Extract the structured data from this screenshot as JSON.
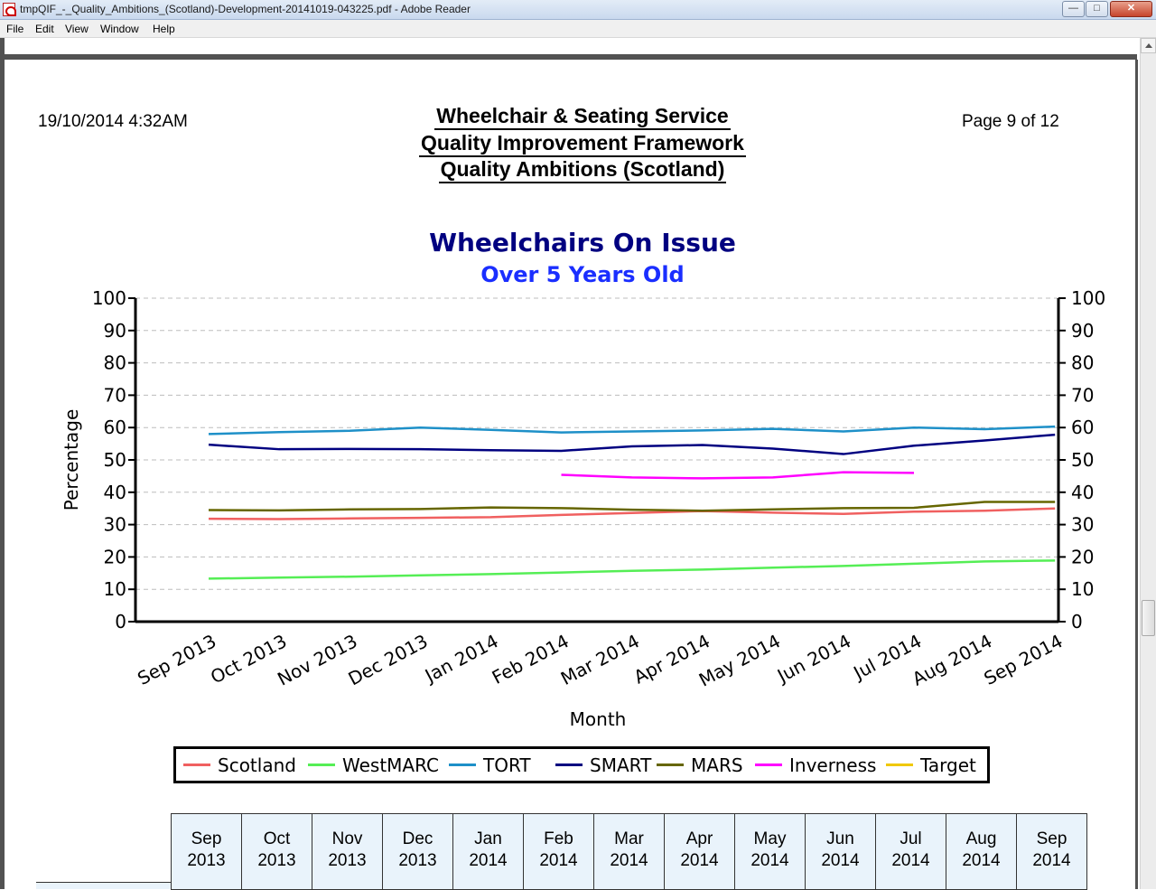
{
  "window": {
    "title": "tmpQIF_-_Quality_Ambitions_(Scotland)-Development-20141019-043225.pdf - Adobe Reader",
    "controls": {
      "minimize": "—",
      "maximize": "□",
      "close": "✕"
    }
  },
  "menu": {
    "file": "File",
    "edit": "Edit",
    "view": "View",
    "window": "Window",
    "help": "Help"
  },
  "header": {
    "date": "19/10/2014 4:32AM",
    "title_line1": "Wheelchair & Seating Service",
    "title_line2": "Quality Improvement Framework",
    "title_line3": "Quality Ambitions (Scotland)",
    "page": "Page 9 of 12"
  },
  "chart_data": {
    "type": "line",
    "title": "Wheelchairs On Issue",
    "subtitle": "Over 5 Years Old",
    "xlabel": "Month",
    "ylabel": "Percentage",
    "ylim": [
      0,
      100
    ],
    "yticks": [
      0,
      10,
      20,
      30,
      40,
      50,
      60,
      70,
      80,
      90,
      100
    ],
    "grid": true,
    "legend_position": "bottom",
    "categories": [
      "Sep 2013",
      "Oct 2013",
      "Nov 2013",
      "Dec 2013",
      "Jan 2014",
      "Feb 2014",
      "Mar 2014",
      "Apr 2014",
      "May 2014",
      "Jun 2014",
      "Jul 2014",
      "Aug 2014",
      "Sep 2014"
    ],
    "series": [
      {
        "name": "Scotland",
        "color": "#f06060",
        "values": [
          31.8,
          31.7,
          31.9,
          32.1,
          32.3,
          33.0,
          33.6,
          34.2,
          33.7,
          33.3,
          34.0,
          34.3,
          35.0
        ]
      },
      {
        "name": "WestMARC",
        "color": "#55ee55",
        "values": [
          13.3,
          13.6,
          13.9,
          14.3,
          14.7,
          15.2,
          15.7,
          16.1,
          16.7,
          17.2,
          17.9,
          18.6,
          18.9
        ]
      },
      {
        "name": "TORT",
        "color": "#1e90c8",
        "values": [
          58.0,
          58.6,
          59.0,
          60.0,
          59.3,
          58.5,
          58.8,
          59.1,
          59.6,
          58.8,
          60.0,
          59.5,
          60.3
        ]
      },
      {
        "name": "SMART",
        "color": "#000080",
        "values": [
          54.7,
          53.3,
          53.4,
          53.3,
          53.0,
          52.8,
          54.2,
          54.6,
          53.5,
          51.8,
          54.4,
          56.0,
          57.8
        ]
      },
      {
        "name": "MARS",
        "color": "#666600",
        "values": [
          34.5,
          34.4,
          34.7,
          34.8,
          35.3,
          35.1,
          34.6,
          34.3,
          34.7,
          35.1,
          35.2,
          37.0,
          37.0
        ]
      },
      {
        "name": "Inverness",
        "color": "#ff00ff",
        "values": [
          null,
          null,
          null,
          null,
          null,
          45.4,
          44.6,
          44.3,
          44.6,
          46.2,
          46.0,
          null,
          null
        ]
      },
      {
        "name": "Target",
        "color": "#f0c800",
        "values": [
          null,
          null,
          null,
          null,
          null,
          null,
          null,
          null,
          null,
          null,
          null,
          null,
          null
        ]
      }
    ]
  },
  "table": {
    "headers": [
      [
        "Sep",
        "2013"
      ],
      [
        "Oct",
        "2013"
      ],
      [
        "Nov",
        "2013"
      ],
      [
        "Dec",
        "2013"
      ],
      [
        "Jan",
        "2014"
      ],
      [
        "Feb",
        "2014"
      ],
      [
        "Mar",
        "2014"
      ],
      [
        "Apr",
        "2014"
      ],
      [
        "May",
        "2014"
      ],
      [
        "Jun",
        "2014"
      ],
      [
        "Jul",
        "2014"
      ],
      [
        "Aug",
        "2014"
      ],
      [
        "Sep",
        "2014"
      ]
    ]
  }
}
